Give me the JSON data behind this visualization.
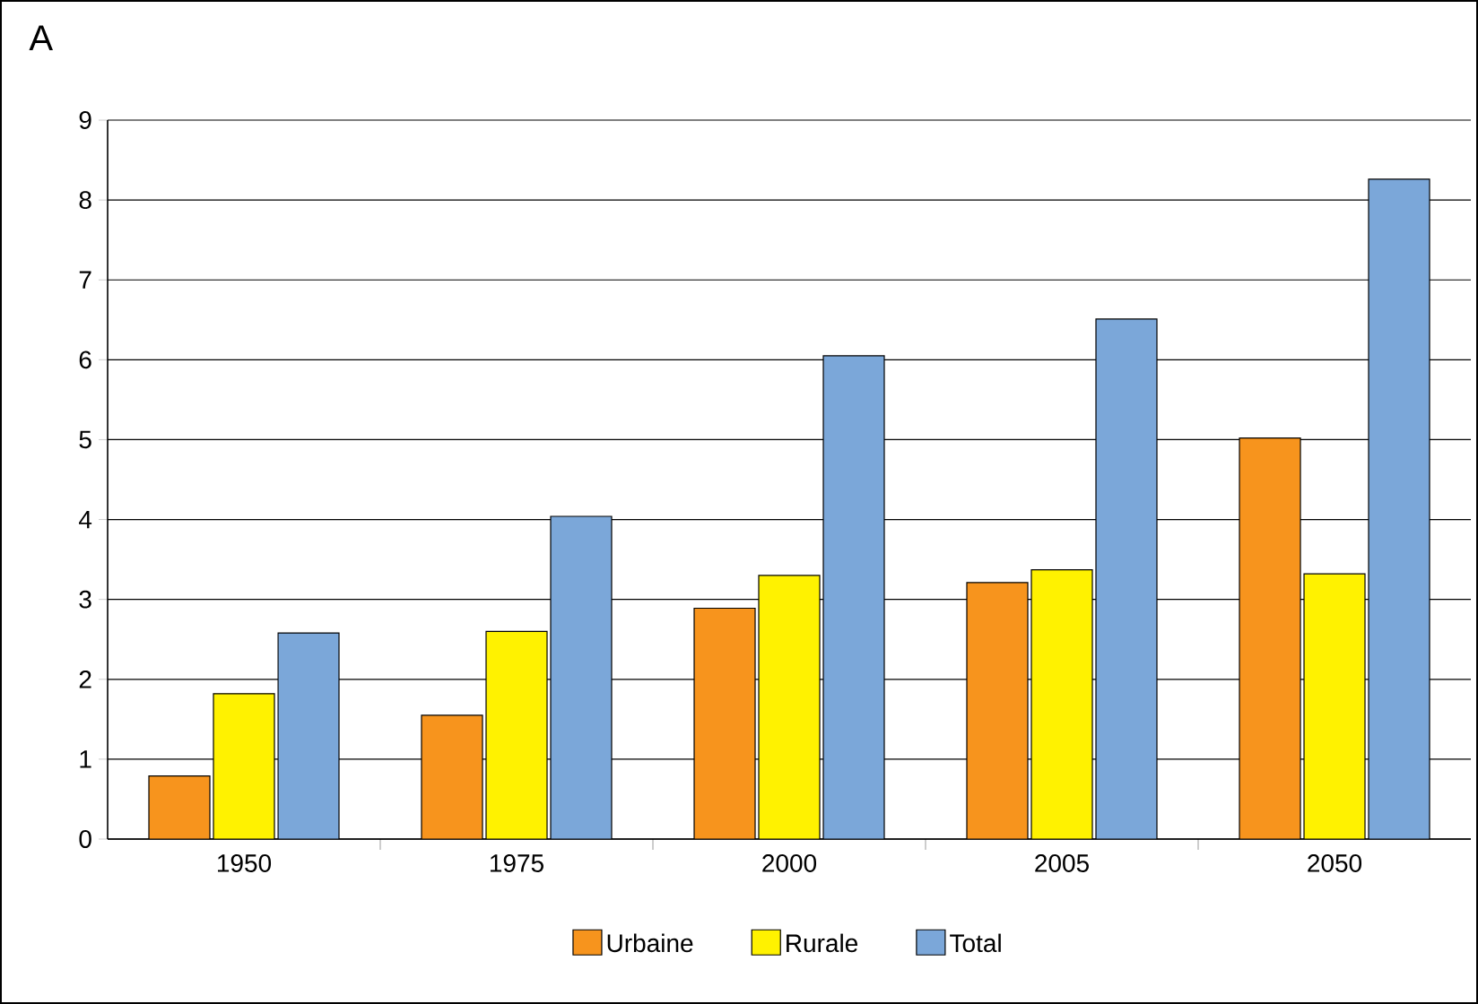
{
  "chart_data": {
    "type": "bar",
    "title": "A",
    "categories": [
      "1950",
      "1975",
      "2000",
      "2005",
      "2050"
    ],
    "series": [
      {
        "name": "Urbaine",
        "color": "#f7941d",
        "values": [
          0.79,
          1.55,
          2.89,
          3.21,
          5.02
        ]
      },
      {
        "name": "Rurale",
        "color": "#fff200",
        "values": [
          1.82,
          2.6,
          3.3,
          3.37,
          3.32
        ]
      },
      {
        "name": "Total",
        "color": "#7ba7d9",
        "values": [
          2.58,
          4.04,
          6.05,
          6.51,
          8.26
        ]
      }
    ],
    "ylim": [
      0,
      9
    ],
    "yticks": [
      0,
      1,
      2,
      3,
      4,
      5,
      6,
      7,
      8,
      9
    ],
    "grid": "y",
    "legend": "bottom"
  }
}
